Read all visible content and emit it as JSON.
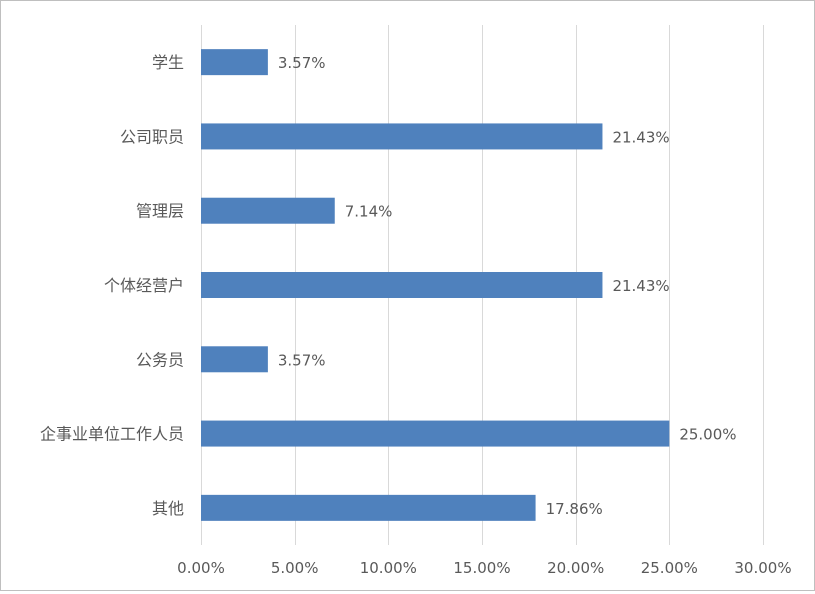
{
  "chart_data": {
    "type": "bar",
    "orientation": "horizontal",
    "categories": [
      "学生",
      "公司职员",
      "管理层",
      "个体经营户",
      "公务员",
      "企事业单位工作人员",
      "其他"
    ],
    "values": [
      3.57,
      21.43,
      7.14,
      21.43,
      3.57,
      25.0,
      17.86
    ],
    "value_labels": [
      "3.57%",
      "21.43%",
      "7.14%",
      "21.43%",
      "3.57%",
      "25.00%",
      "17.86%"
    ],
    "xlim": [
      0,
      30
    ],
    "x_ticks": [
      0,
      5,
      10,
      15,
      20,
      25,
      30
    ],
    "x_tick_labels": [
      "0.00%",
      "5.00%",
      "10.00%",
      "15.00%",
      "20.00%",
      "25.00%",
      "30.00%"
    ],
    "grid": true,
    "legend": "none",
    "colors": {
      "bar": "#4f81bd",
      "grid": "#d9d9d9",
      "text": "#595959",
      "border": "#bfbfbf"
    }
  }
}
